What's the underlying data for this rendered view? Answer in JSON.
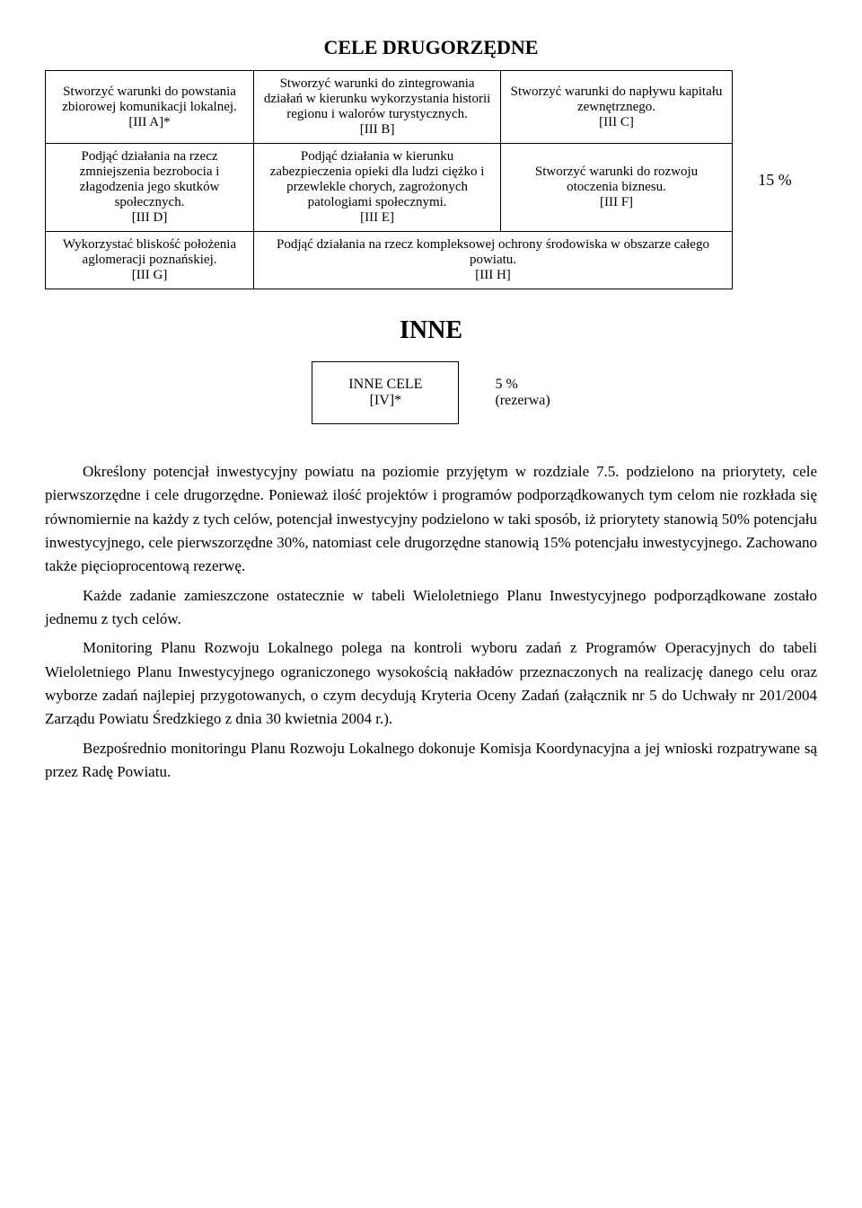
{
  "title1": "CELE DRUGORZĘDNE",
  "cells": {
    "a": "Stworzyć warunki do powstania zbiorowej komunikacji lokalnej.\n[III A]*",
    "b": "Stworzyć warunki do zintegrowania działań w kierunku wykorzystania historii regionu i walorów turystycznych.\n[III B]",
    "c": "Stworzyć warunki do napływu kapitału zewnętrznego.\n[III C]",
    "d": "Podjąć działania na rzecz zmniejszenia bezrobocia i złagodzenia jego skutków społecznych.\n[III D]",
    "e": "Podjąć działania w kierunku zabezpieczenia opieki dla ludzi ciężko i przewlekle chorych, zagrożonych patologiami społecznymi.\n[III E]",
    "f": "Stworzyć warunki do rozwoju otoczenia biznesu.\n[III F]",
    "g": "Wykorzystać bliskość położenia aglomeracji poznańskiej.\n[III G]",
    "h": "Podjąć działania na rzecz kompleksowej ochrony środowiska w obszarze całego powiatu.\n[III H]"
  },
  "pct1": "15 %",
  "title2": "INNE",
  "inne_label": "INNE CELE\n[IV]*",
  "inne_pct": "5 %\n(rezerwa)",
  "paragraphs": [
    "Określony potencjał inwestycyjny powiatu na poziomie przyjętym w rozdziale 7.5. podzielono na priorytety, cele pierwszorzędne i cele drugorzędne. Ponieważ ilość projektów i programów podporządkowanych tym celom nie rozkłada się równomiernie na każdy z tych celów, potencjał inwestycyjny podzielono w taki sposób, iż priorytety stanowią 50% potencjału inwestycyjnego, cele pierwszorzędne 30%, natomiast cele drugorzędne stanowią 15% potencjału inwestycyjnego. Zachowano także pięcioprocentową rezerwę.",
    "Każde zadanie zamieszczone ostatecznie w tabeli Wieloletniego Planu Inwestycyjnego podporządkowane zostało jednemu z tych celów.",
    "Monitoring Planu Rozwoju Lokalnego polega na kontroli wyboru zadań z Programów Operacyjnych do tabeli Wieloletniego Planu Inwestycyjnego ograniczonego wysokością nakładów przeznaczonych na realizację danego celu oraz wyborze zadań najlepiej przygotowanych, o czym decydują Kryteria Oceny Zadań (załącznik nr 5 do Uchwały nr 201/2004 Zarządu Powiatu Średzkiego z dnia 30 kwietnia 2004 r.).",
    "Bezpośrednio monitoringu Planu Rozwoju Lokalnego dokonuje Komisja Koordynacyjna a jej wnioski rozpatrywane są przez Radę Powiatu."
  ]
}
